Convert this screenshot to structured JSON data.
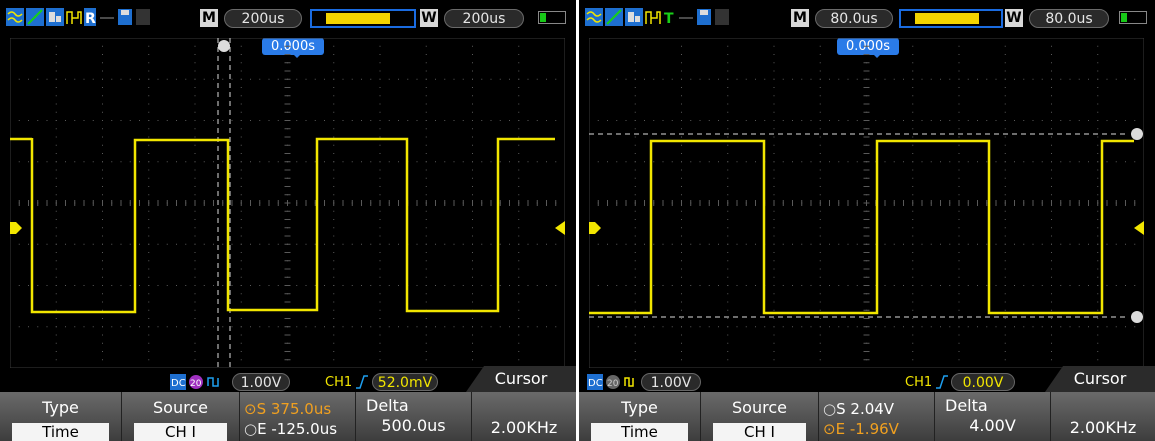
{
  "left": {
    "topbar": {
      "timebase": "200us",
      "mode_label": "M",
      "window_label": "W",
      "window_timebase": "200us"
    },
    "trigger_time": "0.000s",
    "info": {
      "ch_scale": "1.00V",
      "trigger_source": "CH1",
      "trigger_level": "52.0mV",
      "cursor_tab": "Cursor"
    },
    "menu": {
      "type_title": "Type",
      "type_value": "Time",
      "source_title": "Source",
      "source_value": "CH I",
      "s_label": "S",
      "s_value": "375.0us",
      "e_label": "E",
      "e_value": "-125.0us",
      "delta_title": "Delta",
      "delta_value": "500.0us",
      "freq_value": "2.00KHz"
    }
  },
  "right": {
    "topbar": {
      "timebase": "80.0us",
      "mode_label": "M",
      "window_label": "W",
      "window_timebase": "80.0us"
    },
    "trigger_time": "0.000s",
    "info": {
      "ch_scale": "1.00V",
      "trigger_source": "CH1",
      "trigger_level": "0.00V",
      "cursor_tab": "Cursor"
    },
    "menu": {
      "type_title": "Type",
      "type_value": "Time",
      "source_title": "Source",
      "source_value": "CH I",
      "s_label": "S",
      "s_value": "2.04V",
      "e_label": "E",
      "e_value": "-1.96V",
      "delta_title": "Delta",
      "delta_value": "4.00V",
      "freq_value": "2.00KHz"
    }
  },
  "colors": {
    "trace": "#f2e600",
    "grid": "#5a5a5a",
    "accent": "#2a7be8",
    "cursor_orange": "#f0a020"
  }
}
